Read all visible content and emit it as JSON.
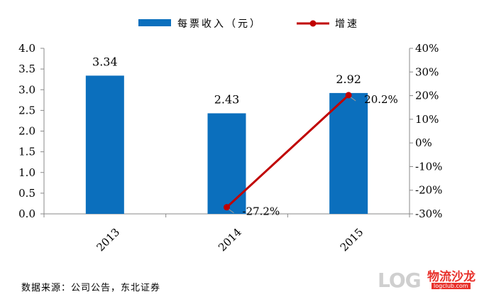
{
  "chart_data": {
    "type": "bar+line",
    "categories": [
      "2013",
      "2014",
      "2015"
    ],
    "series": [
      {
        "name": "每票收入（元）",
        "type": "bar",
        "axis": "left",
        "values": [
          3.34,
          2.43,
          2.92
        ],
        "labels": [
          "3.34",
          "2.43",
          "2.92"
        ],
        "color": "#0b6fbd"
      },
      {
        "name": "增速",
        "type": "line",
        "axis": "right",
        "values": [
          null,
          -27.2,
          20.2
        ],
        "labels": [
          "",
          "-27.2%",
          "20.2%"
        ],
        "color": "#c00000"
      }
    ],
    "yleft": {
      "ticks": [
        "0.0",
        "0.5",
        "1.0",
        "1.5",
        "2.0",
        "2.5",
        "3.0",
        "3.5",
        "4.0"
      ],
      "ylim": [
        0,
        4
      ]
    },
    "yright": {
      "ticks": [
        "-30%",
        "-20%",
        "-10%",
        "0%",
        "10%",
        "20%",
        "30%",
        "40%"
      ],
      "ylim": [
        -30,
        40
      ]
    },
    "legend_position": "top",
    "grid": false
  },
  "source_text": "数据来源：公司公告，东北证券",
  "watermark": {
    "brand": "物流沙龙",
    "latin": "LOG",
    "url": "logclub.com"
  }
}
